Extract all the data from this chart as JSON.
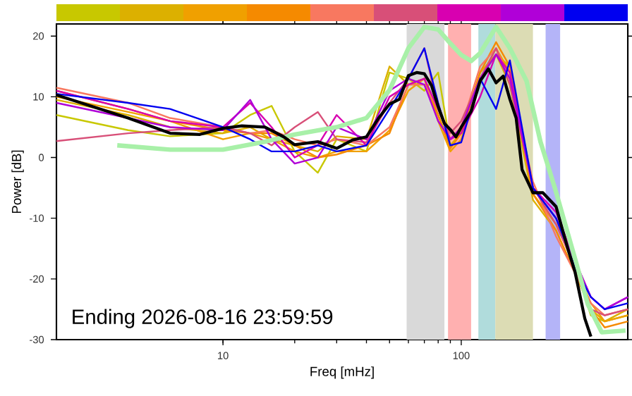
{
  "chart_data": {
    "type": "line",
    "xlabel": "Freq [mHz]",
    "ylabel": "Power [dB]",
    "annotations": [
      "Ending 2026-08-16 23:59:59"
    ],
    "log": "x",
    "xlim": [
      2,
      500
    ],
    "ylim": [
      -30,
      22
    ],
    "xticks": [
      10,
      100
    ],
    "yticks": [
      -30,
      -20,
      -10,
      0,
      10,
      20
    ],
    "grid": false,
    "marker": "none",
    "line_style": "solid",
    "x": [
      2,
      4,
      6,
      10,
      13,
      16,
      20,
      25,
      30,
      40,
      50,
      60,
      70,
      80,
      90,
      100,
      120,
      140,
      160,
      200,
      250,
      300,
      350,
      400,
      500
    ],
    "bands": [
      {
        "axis": "x",
        "from": 59,
        "to": 85,
        "color": "#d9d9d9"
      },
      {
        "axis": "x",
        "from": 88,
        "to": 110,
        "color": "#ffb0b0"
      },
      {
        "axis": "x",
        "from": 118,
        "to": 139,
        "color": "#b0dcdc"
      },
      {
        "axis": "x",
        "from": 139,
        "to": 200,
        "color": "#dcdcb4"
      },
      {
        "axis": "x",
        "from": 226,
        "to": 260,
        "color": "#b4b4f8"
      }
    ],
    "series": [
      {
        "color": "#c8c800",
        "values": [
          7,
          4.5,
          3.5,
          4,
          7,
          8.5,
          1,
          -2.5,
          3,
          1,
          14,
          13,
          11,
          14,
          2,
          4,
          13,
          17,
          15,
          -5,
          -10,
          -18,
          -26,
          -27,
          -26
        ]
      },
      {
        "color": "#dcb000",
        "values": [
          9.5,
          7,
          5,
          4,
          5,
          3,
          2,
          1,
          3.5,
          3,
          15,
          12,
          12,
          7,
          2,
          4,
          14,
          17,
          12,
          -7,
          -12,
          -19,
          -25,
          -27,
          -25
        ]
      },
      {
        "color": "#f0a000",
        "values": [
          10,
          7.5,
          6,
          3,
          4,
          3,
          1,
          0,
          1,
          1,
          4.5,
          11,
          13,
          6,
          1,
          3,
          13,
          18,
          14,
          -6,
          -11,
          -18,
          -24,
          -27,
          -26
        ]
      },
      {
        "color": "#f58a00",
        "values": [
          11,
          8,
          6,
          4.5,
          4,
          4,
          2,
          0,
          0.5,
          2,
          4,
          12,
          13,
          7,
          1.5,
          4,
          14,
          19,
          15,
          -6,
          -12,
          -19,
          -25,
          -28,
          -27
        ]
      },
      {
        "color": "#f87860",
        "values": [
          11.5,
          9,
          6.5,
          5,
          4,
          4.5,
          3,
          2,
          3,
          2,
          5,
          12,
          12,
          8,
          3,
          5,
          15,
          18,
          13,
          -4,
          -13,
          -19,
          -24,
          -26,
          -25
        ]
      },
      {
        "color": "#d84f78",
        "values": [
          2.7,
          4,
          4.5,
          5,
          4,
          2,
          5,
          7.5,
          3,
          2.5,
          9,
          13,
          18,
          8,
          4,
          6,
          13,
          18,
          12,
          -5,
          -11,
          -18,
          -25,
          -26,
          -25
        ]
      },
      {
        "color": "#d800b0",
        "values": [
          11,
          8,
          6,
          5,
          9,
          5,
          0,
          2,
          7,
          2,
          10,
          12,
          13,
          8,
          3,
          4,
          10,
          17,
          14,
          -5,
          -9,
          -17,
          -23,
          -25,
          -23
        ]
      },
      {
        "color": "#b000d8",
        "values": [
          9,
          6.5,
          5,
          4.5,
          9.5,
          3,
          -1,
          0,
          5,
          3,
          11,
          13,
          12,
          6,
          3,
          5,
          13,
          17,
          13,
          -5,
          -10,
          -17,
          -23,
          -25,
          -23
        ]
      },
      {
        "color": "#0000f0",
        "values": [
          10.5,
          9,
          8,
          5,
          3,
          1,
          1,
          2,
          1,
          2,
          8,
          13,
          18,
          9,
          2,
          2.5,
          13,
          8,
          16,
          -5,
          -10,
          -18,
          -23,
          -25,
          -24
        ]
      },
      {
        "color": "#a8f0a8",
        "x": [
          3.6,
          6,
          10,
          15,
          20,
          30,
          40,
          50,
          60,
          70,
          80,
          90,
          100,
          110,
          120,
          140,
          160,
          188,
          215,
          247,
          296,
          340,
          389,
          489
        ],
        "values": [
          2,
          1.3,
          1.3,
          2.6,
          3.8,
          5,
          6.5,
          11.1,
          18,
          21.5,
          21.1,
          18.8,
          16.9,
          15.9,
          17.2,
          21.5,
          18,
          12.6,
          2.6,
          -5,
          -15.8,
          -24.2,
          -28.8,
          -28.5
        ]
      },
      {
        "color": "#000000",
        "x": [
          2,
          4,
          6,
          8,
          10,
          12,
          15,
          18,
          20,
          25,
          30,
          35,
          40,
          45,
          50,
          55,
          60,
          65,
          70,
          75,
          80,
          85,
          90,
          95,
          100,
          110,
          120,
          130,
          140,
          150,
          160,
          170,
          180,
          200,
          220,
          250,
          280,
          300,
          330,
          350
        ],
        "values": [
          10.3,
          6.5,
          4,
          3.8,
          4.8,
          5.2,
          5,
          3.4,
          2.1,
          2.6,
          1.5,
          2.9,
          3.4,
          6.5,
          8.8,
          9.6,
          13.5,
          14,
          13.8,
          11.9,
          8.4,
          5.6,
          4.6,
          3.4,
          5,
          7.6,
          12.6,
          14.6,
          12.3,
          13.4,
          9.6,
          6.5,
          -2,
          -5.8,
          -5.8,
          -8.1,
          -15,
          -18.8,
          -26.5,
          -29.5
        ]
      }
    ]
  }
}
